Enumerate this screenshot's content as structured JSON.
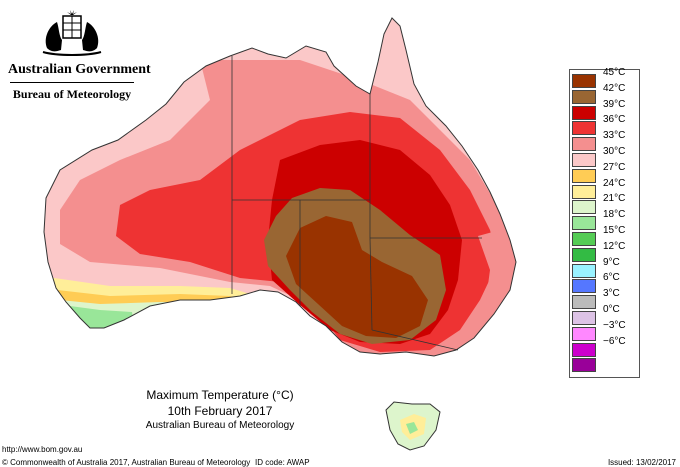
{
  "header": {
    "government": "Australian Government",
    "bureau": "Bureau of Meteorology"
  },
  "map": {
    "region": "Australia",
    "ocean_color": "#ffffff",
    "hottest_zone": "Inland south-eastern Australia (western NSW and eastern SA) at 42–45°C"
  },
  "legend": {
    "items": [
      {
        "label": "45°C",
        "color": "#993300"
      },
      {
        "label": "42°C",
        "color": "#996633"
      },
      {
        "label": "39°C",
        "color": "#cc0000"
      },
      {
        "label": "36°C",
        "color": "#ee3333"
      },
      {
        "label": "33°C",
        "color": "#f48f8f"
      },
      {
        "label": "30°C",
        "color": "#fbc8c8"
      },
      {
        "label": "27°C",
        "color": "#ffcc55"
      },
      {
        "label": "24°C",
        "color": "#ffee99"
      },
      {
        "label": "21°C",
        "color": "#ddf5cc"
      },
      {
        "label": "18°C",
        "color": "#99e699"
      },
      {
        "label": "15°C",
        "color": "#55cc55"
      },
      {
        "label": "12°C",
        "color": "#33bb44"
      },
      {
        "label": "9°C",
        "color": "#99f2ff"
      },
      {
        "label": "6°C",
        "color": "#5577ff"
      },
      {
        "label": "3°C",
        "color": "#bbbbbb"
      },
      {
        "label": "0°C",
        "color": "#ddc3e6"
      },
      {
        "label": "−3°C",
        "color": "#ff88ff"
      },
      {
        "label": "−6°C",
        "color": "#cc00cc"
      },
      {
        "label": "",
        "color": "#990099"
      }
    ]
  },
  "caption": {
    "title": "Maximum Temperature (°C)",
    "date": "10th February 2017",
    "organisation": "Australian Bureau of Meteorology"
  },
  "footer": {
    "url": "http://www.bom.gov.au",
    "copyright": "© Commonwealth of Australia 2017, Australian Bureau of Meteorology",
    "id_code": "ID code: AWAP",
    "issued": "Issued: 13/02/2017"
  }
}
